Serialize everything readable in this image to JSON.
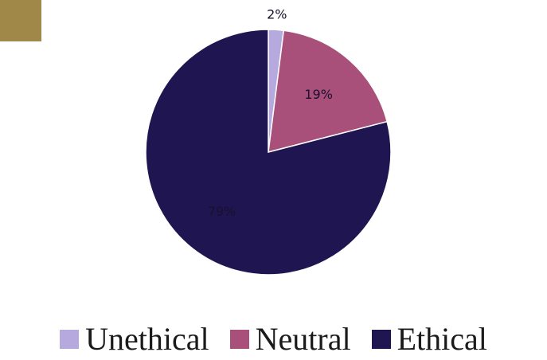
{
  "decor": {
    "corner_color": "#a08848"
  },
  "chart_data": {
    "type": "pie",
    "categories": [
      "Unethical",
      "Neutral",
      "Ethical"
    ],
    "values": [
      2,
      19,
      79
    ],
    "data_labels": [
      "2%",
      "19%",
      "79%"
    ],
    "colors": [
      "#b6a9de",
      "#a84f7a",
      "#1f1550"
    ],
    "legend_placement": "bottom",
    "title": ""
  }
}
